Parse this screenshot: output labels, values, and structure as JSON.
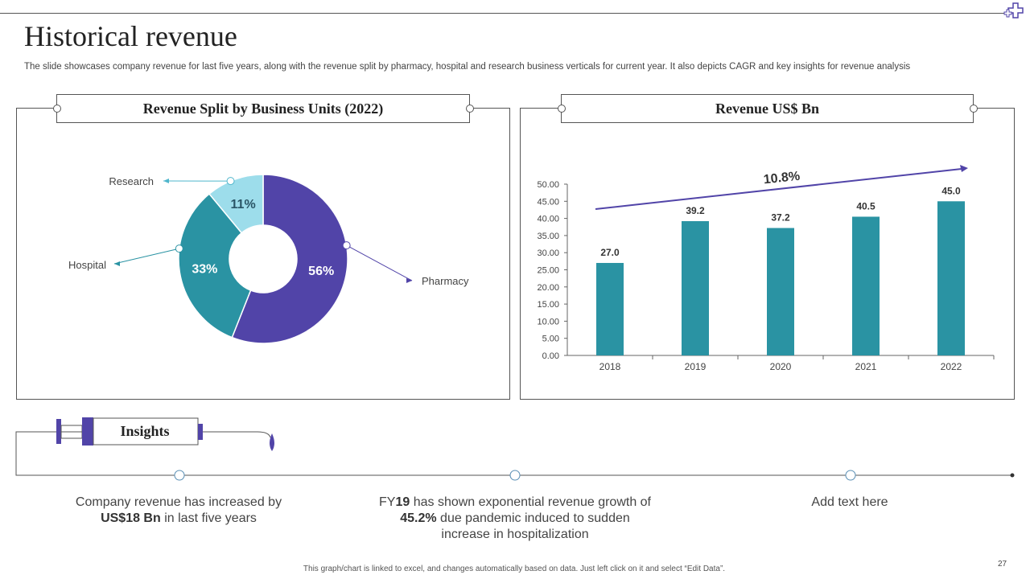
{
  "header": {
    "title": "Historical revenue",
    "subtitle": "The slide showcases company revenue for last five years, along with the revenue split by pharmacy, hospital and research business verticals for current year. It also depicts CAGR and key insights for revenue analysis"
  },
  "left_panel": {
    "title": "Revenue Split by Business Units (2022)"
  },
  "right_panel": {
    "title": "Revenue US$ Bn"
  },
  "chart_data": [
    {
      "type": "pie",
      "title": "Revenue Split by Business Units (2022)",
      "donut": true,
      "slices": [
        {
          "label": "Pharmacy",
          "value": 56,
          "display": "56%",
          "color": "#5144A8"
        },
        {
          "label": "Hospital",
          "value": 33,
          "display": "33%",
          "color": "#2A93A3"
        },
        {
          "label": "Research",
          "value": 11,
          "display": "11%",
          "color": "#9DDDEB"
        }
      ]
    },
    {
      "type": "bar",
      "title": "Revenue US$ Bn",
      "categories": [
        "2018",
        "2019",
        "2020",
        "2021",
        "2022"
      ],
      "values": [
        27.0,
        39.2,
        37.2,
        40.5,
        45.0
      ],
      "value_labels": [
        "27.0",
        "39.2",
        "37.2",
        "40.5",
        "45.0"
      ],
      "ylim": [
        0,
        50
      ],
      "yticks": [
        "0.00",
        "5.00",
        "10.00",
        "15.00",
        "20.00",
        "25.00",
        "30.00",
        "35.00",
        "40.00",
        "45.00",
        "50.00"
      ],
      "bar_color": "#2A93A3",
      "annotation": "10.8%",
      "grid": false
    }
  ],
  "insights": {
    "label": "Insights",
    "items": [
      {
        "pre": "Company revenue has increased by ",
        "bold": "US$18 Bn",
        "post": " in last five years"
      },
      {
        "pre": "FY",
        "bold": "19",
        "post": " has shown exponential revenue growth of ",
        "bold2": "45.2%",
        "post2": " due pandemic induced to sudden increase in hospitalization"
      },
      {
        "pre": "Add text here",
        "bold": "",
        "post": ""
      }
    ]
  },
  "footer": {
    "note": "This graph/chart is linked to excel, and changes automatically based on data. Just left click on it and select “Edit Data”.",
    "page_number": "27"
  },
  "colors": {
    "accent": "#5144A8",
    "teal": "#2A93A3",
    "light_teal": "#9DDDEB",
    "line": "#555555"
  }
}
